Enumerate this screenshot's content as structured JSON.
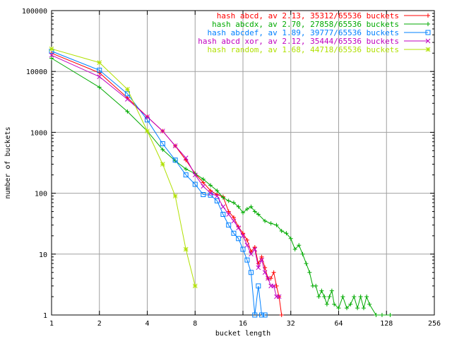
{
  "chart_data": {
    "type": "line",
    "title": "",
    "xlabel": "bucket length",
    "ylabel": "number of buckets",
    "x_scale": "log2",
    "y_scale": "log10",
    "xlim": [
      1,
      256
    ],
    "ylim": [
      1,
      100000
    ],
    "x_ticks": [
      1,
      2,
      4,
      8,
      16,
      32,
      64,
      128,
      256
    ],
    "x_tick_labels": [
      "1",
      "2",
      "4",
      "8",
      "16",
      "32",
      "64",
      "128",
      "256"
    ],
    "y_ticks": [
      1,
      10,
      100,
      1000,
      10000,
      100000
    ],
    "y_tick_labels": [
      "1",
      "10",
      "100",
      "1000",
      "10000",
      "100000"
    ],
    "grid": true,
    "legend_position": "top-right",
    "series": [
      {
        "name": "hash abcd, av 2.13, 35312/65536 buckets",
        "color": "#ff0000",
        "marker": "plus",
        "points": [
          [
            1,
            20000
          ],
          [
            2,
            9500
          ],
          [
            3,
            3700
          ],
          [
            4,
            1800
          ],
          [
            5,
            1050
          ],
          [
            6,
            600
          ],
          [
            7,
            350
          ],
          [
            8,
            210
          ],
          [
            9,
            150
          ],
          [
            10,
            110
          ],
          [
            11,
            95
          ],
          [
            12,
            88
          ],
          [
            13,
            50
          ],
          [
            14,
            40
          ],
          [
            15,
            28
          ],
          [
            16,
            22
          ],
          [
            17,
            17
          ],
          [
            18,
            11
          ],
          [
            19,
            13
          ],
          [
            20,
            7
          ],
          [
            21,
            9
          ],
          [
            22,
            6
          ],
          [
            23,
            4
          ],
          [
            24,
            4
          ],
          [
            25,
            5
          ],
          [
            26,
            3
          ],
          [
            27,
            2
          ],
          [
            28,
            1
          ]
        ]
      },
      {
        "name": "hash abcdx, av 2.70, 27858/65536 buckets",
        "color": "#00aa00",
        "marker": "cross",
        "points": [
          [
            1,
            16500
          ],
          [
            2,
            5500
          ],
          [
            3,
            2200
          ],
          [
            4,
            1050
          ],
          [
            5,
            520
          ],
          [
            6,
            340
          ],
          [
            7,
            250
          ],
          [
            8,
            210
          ],
          [
            9,
            170
          ],
          [
            10,
            135
          ],
          [
            11,
            110
          ],
          [
            12,
            85
          ],
          [
            13,
            75
          ],
          [
            14,
            70
          ],
          [
            15,
            60
          ],
          [
            16,
            48
          ],
          [
            17,
            55
          ],
          [
            18,
            60
          ],
          [
            19,
            50
          ],
          [
            20,
            45
          ],
          [
            22,
            35
          ],
          [
            24,
            32
          ],
          [
            26,
            30
          ],
          [
            28,
            24
          ],
          [
            30,
            22
          ],
          [
            32,
            18
          ],
          [
            34,
            12
          ],
          [
            36,
            14
          ],
          [
            38,
            10
          ],
          [
            40,
            7
          ],
          [
            42,
            5
          ],
          [
            44,
            3
          ],
          [
            46,
            3
          ],
          [
            48,
            2
          ],
          [
            50,
            2.5
          ],
          [
            52,
            2
          ],
          [
            54,
            1.5
          ],
          [
            56,
            2
          ],
          [
            58,
            2.5
          ],
          [
            60,
            1.5
          ],
          [
            64,
            1.3
          ],
          [
            68,
            2
          ],
          [
            72,
            1.3
          ],
          [
            76,
            1.5
          ],
          [
            80,
            2
          ],
          [
            84,
            1.3
          ],
          [
            88,
            2
          ],
          [
            92,
            1.3
          ],
          [
            96,
            2
          ],
          [
            100,
            1.5
          ],
          [
            110,
            1
          ],
          [
            120,
            1
          ],
          [
            135,
            1
          ]
        ]
      },
      {
        "name": "hash abcdef, av 1.89, 39777/65536 buckets",
        "color": "#0080ff",
        "marker": "square",
        "points": [
          [
            1,
            21500
          ],
          [
            2,
            10500
          ],
          [
            3,
            4300
          ],
          [
            4,
            1600
          ],
          [
            5,
            650
          ],
          [
            6,
            350
          ],
          [
            7,
            200
          ],
          [
            8,
            140
          ],
          [
            9,
            95
          ],
          [
            10,
            93
          ],
          [
            11,
            75
          ],
          [
            12,
            45
          ],
          [
            13,
            30
          ],
          [
            14,
            22
          ],
          [
            15,
            18
          ],
          [
            16,
            12
          ],
          [
            17,
            8
          ],
          [
            18,
            5
          ],
          [
            19,
            1
          ],
          [
            20,
            3
          ],
          [
            21,
            1
          ],
          [
            22,
            1
          ]
        ]
      },
      {
        "name": "hash abcd xor, av 2.12, 35444/65536 buckets",
        "color": "#c000c0",
        "marker": "x",
        "points": [
          [
            1,
            18500
          ],
          [
            2,
            8200
          ],
          [
            3,
            3500
          ],
          [
            4,
            1800
          ],
          [
            5,
            1050
          ],
          [
            6,
            600
          ],
          [
            7,
            380
          ],
          [
            8,
            200
          ],
          [
            9,
            130
          ],
          [
            10,
            100
          ],
          [
            11,
            90
          ],
          [
            12,
            60
          ],
          [
            13,
            45
          ],
          [
            14,
            35
          ],
          [
            15,
            27
          ],
          [
            16,
            20
          ],
          [
            17,
            14
          ],
          [
            18,
            10
          ],
          [
            19,
            12
          ],
          [
            20,
            6
          ],
          [
            21,
            8
          ],
          [
            22,
            5
          ],
          [
            23,
            4
          ],
          [
            24,
            3
          ],
          [
            25,
            3
          ],
          [
            26,
            2
          ],
          [
            27,
            2
          ]
        ]
      },
      {
        "name": "hash random, av 1.68, 44718/65536 buckets",
        "color": "#b0e000",
        "marker": "star",
        "points": [
          [
            1,
            23500
          ],
          [
            2,
            14000
          ],
          [
            3,
            5100
          ],
          [
            4,
            1050
          ],
          [
            5,
            300
          ],
          [
            6,
            90
          ],
          [
            7,
            12
          ],
          [
            8,
            3
          ]
        ]
      }
    ]
  }
}
